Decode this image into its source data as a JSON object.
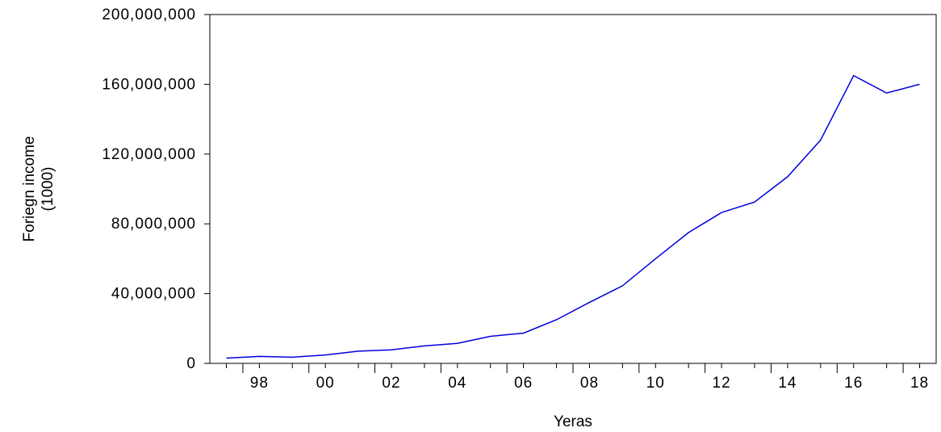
{
  "chart_data": {
    "type": "line",
    "xlabel": "Yeras",
    "ylabel_lines": [
      "Foriegn income",
      "(1000)"
    ],
    "ylim": [
      0,
      200000000
    ],
    "yticks": [
      0,
      40000000,
      80000000,
      120000000,
      160000000,
      200000000
    ],
    "ytick_labels": [
      "0",
      "40,000,000",
      "80,000,000",
      "120,000,000",
      "160,000,000",
      "200,000,000"
    ],
    "xlim": [
      1996.5,
      2018.5
    ],
    "xtick_years": [
      1998,
      2000,
      2002,
      2004,
      2006,
      2008,
      2010,
      2012,
      2014,
      2016,
      2018
    ],
    "xtick_labels": [
      "98",
      "00",
      "02",
      "04",
      "06",
      "08",
      "10",
      "12",
      "14",
      "16",
      "18"
    ],
    "grid": false,
    "line_color": "#0000e0",
    "series": [
      {
        "x": [
          1997,
          1998,
          1999,
          2000,
          2001,
          2002,
          2003,
          2004,
          2005,
          2006,
          2007,
          2008,
          2009,
          2010,
          2011,
          2012,
          2013,
          2014,
          2015,
          2016,
          2017,
          2018
        ],
        "values": [
          3000000,
          4000000,
          3500000,
          4800000,
          7000000,
          7800000,
          10000000,
          11500000,
          15500000,
          17300000,
          25000000,
          35000000,
          44500000,
          60000000,
          75000000,
          86500000,
          92500000,
          107000000,
          128000000,
          165000000,
          155000000,
          160000000
        ]
      }
    ]
  }
}
